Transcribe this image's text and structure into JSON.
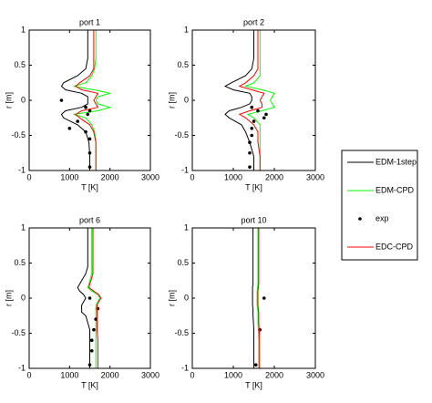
{
  "chart_data": [
    {
      "type": "line",
      "title": "port 1",
      "xlabel": "T [K]",
      "ylabel": "r [m]",
      "xlim": [
        0,
        3000
      ],
      "ylim": [
        -1,
        1
      ],
      "xticks": [
        0,
        1000,
        2000,
        3000
      ],
      "yticks": [
        -1,
        -0.5,
        0,
        0.5,
        1
      ],
      "y": [
        1,
        0.8,
        0.6,
        0.45,
        0.35,
        0.25,
        0.2,
        0.15,
        0.1,
        0.05,
        0,
        -0.05,
        -0.1,
        -0.15,
        -0.2,
        -0.25,
        -0.35,
        -0.45,
        -0.6,
        -0.8,
        -1
      ],
      "series": [
        {
          "name": "EDM-1step",
          "color": "#000000",
          "values": [
            1450,
            1450,
            1450,
            1400,
            1200,
            850,
            800,
            900,
            1300,
            1450,
            1450,
            1450,
            1300,
            900,
            800,
            850,
            1200,
            1400,
            1480,
            1500,
            1500
          ]
        },
        {
          "name": "EDM-CPD",
          "color": "#00ff00",
          "values": [
            1650,
            1650,
            1650,
            1620,
            1550,
            1400,
            1100,
            1600,
            2000,
            1700,
            1650,
            1700,
            2000,
            1700,
            1100,
            1400,
            1550,
            1620,
            1650,
            1650,
            1650
          ]
        },
        {
          "name": "exp",
          "color": "#000000",
          "style": "points",
          "y": [
            0,
            -0.1,
            -0.15,
            -0.2,
            -0.3,
            -0.4,
            -0.45,
            -0.55,
            -0.75,
            -0.95
          ],
          "values": [
            800,
            1400,
            1500,
            1450,
            1200,
            1000,
            1400,
            1500,
            1500,
            1500
          ]
        },
        {
          "name": "EDC-CPD",
          "color": "#ff0000",
          "values": [
            1600,
            1600,
            1600,
            1600,
            1500,
            1250,
            1150,
            1300,
            1700,
            1650,
            1600,
            1650,
            1700,
            1300,
            1150,
            1250,
            1500,
            1600,
            1650,
            1650,
            1650
          ]
        }
      ]
    },
    {
      "type": "line",
      "title": "port 2",
      "xlabel": "T [K]",
      "ylabel": "r [m]",
      "xlim": [
        0,
        3000
      ],
      "ylim": [
        -1,
        1
      ],
      "xticks": [
        0,
        1000,
        2000,
        3000
      ],
      "yticks": [
        -1,
        -0.5,
        0,
        0.5,
        1
      ],
      "y": [
        1,
        0.8,
        0.6,
        0.45,
        0.35,
        0.25,
        0.2,
        0.15,
        0.1,
        0.05,
        0,
        -0.05,
        -0.1,
        -0.15,
        -0.2,
        -0.25,
        -0.35,
        -0.45,
        -0.6,
        -0.8,
        -1
      ],
      "series": [
        {
          "color": "#000000",
          "values": [
            1500,
            1500,
            1500,
            1450,
            1300,
            950,
            800,
            1000,
            1400,
            1450,
            1450,
            1400,
            1200,
            900,
            800,
            900,
            1200,
            1300,
            1400,
            1500,
            1500
          ]
        },
        {
          "color": "#00ff00",
          "values": [
            1650,
            1650,
            1650,
            1650,
            1650,
            1500,
            1300,
            1700,
            2000,
            1950,
            1900,
            1950,
            2000,
            1700,
            1350,
            1500,
            1650,
            1650,
            1650,
            1650,
            1650
          ]
        },
        {
          "color": "#000000",
          "style": "points",
          "y": [
            -0.1,
            -0.15,
            -0.2,
            -0.25,
            -0.3,
            -0.4,
            -0.5,
            -0.6,
            -0.75,
            -0.95
          ],
          "values": [
            1450,
            1600,
            1800,
            1750,
            1500,
            1450,
            1450,
            1400,
            1400,
            1400
          ]
        },
        {
          "color": "#ff0000",
          "values": [
            1600,
            1600,
            1600,
            1600,
            1500,
            1300,
            1150,
            1450,
            1750,
            1700,
            1650,
            1700,
            1700,
            1400,
            1150,
            1300,
            1500,
            1600,
            1600,
            1650,
            1650
          ]
        }
      ]
    },
    {
      "type": "line",
      "title": "port 6",
      "xlabel": "T [K]",
      "ylabel": "r [m]",
      "xlim": [
        0,
        3000
      ],
      "ylim": [
        -1,
        1
      ],
      "xticks": [
        0,
        1000,
        2000,
        3000
      ],
      "yticks": [
        -1,
        -0.5,
        0,
        0.5,
        1
      ],
      "y": [
        1,
        0.8,
        0.6,
        0.45,
        0.35,
        0.25,
        0.2,
        0.15,
        0.1,
        0.05,
        0,
        -0.05,
        -0.1,
        -0.15,
        -0.2,
        -0.25,
        -0.35,
        -0.45,
        -0.6,
        -0.8,
        -1
      ],
      "series": [
        {
          "color": "#000000",
          "values": [
            1450,
            1450,
            1450,
            1450,
            1400,
            1300,
            1250,
            1200,
            1250,
            1350,
            1400,
            1350,
            1300,
            1300,
            1300,
            1400,
            1450,
            1500,
            1500,
            1500,
            1500
          ]
        },
        {
          "color": "#00ff00",
          "values": [
            1550,
            1550,
            1550,
            1550,
            1550,
            1500,
            1480,
            1450,
            1550,
            1700,
            1750,
            1700,
            1650,
            1650,
            1650,
            1650,
            1650,
            1650,
            1650,
            1650,
            1650
          ]
        },
        {
          "color": "#000000",
          "style": "points",
          "y": [
            0,
            -0.15,
            -0.3,
            -0.45,
            -0.6,
            -0.75,
            -0.95
          ],
          "values": [
            1500,
            1700,
            1650,
            1600,
            1550,
            1550,
            1500
          ]
        },
        {
          "color": "#ff0000",
          "values": [
            1580,
            1580,
            1580,
            1580,
            1580,
            1530,
            1500,
            1480,
            1600,
            1720,
            1780,
            1720,
            1680,
            1680,
            1680,
            1680,
            1680,
            1680,
            1700,
            1700,
            1700
          ]
        }
      ]
    },
    {
      "type": "line",
      "title": "port 10",
      "xlabel": "T [K]",
      "ylabel": "r [m]",
      "xlim": [
        0,
        3000
      ],
      "ylim": [
        -1,
        1
      ],
      "xticks": [
        0,
        1000,
        2000,
        3000
      ],
      "yticks": [
        -1,
        -0.5,
        0,
        0.5,
        1
      ],
      "y": [
        1,
        0.8,
        0.6,
        0.45,
        0.35,
        0.25,
        0.2,
        0.15,
        0.1,
        0.05,
        0,
        -0.05,
        -0.1,
        -0.15,
        -0.2,
        -0.25,
        -0.35,
        -0.45,
        -0.6,
        -0.8,
        -1
      ],
      "series": [
        {
          "color": "#000000",
          "values": [
            1480,
            1480,
            1480,
            1480,
            1480,
            1480,
            1480,
            1470,
            1470,
            1470,
            1470,
            1470,
            1470,
            1480,
            1480,
            1480,
            1490,
            1500,
            1500,
            1500,
            1500
          ]
        },
        {
          "color": "#00ff00",
          "values": [
            1600,
            1600,
            1600,
            1600,
            1600,
            1600,
            1600,
            1590,
            1580,
            1580,
            1580,
            1580,
            1580,
            1590,
            1600,
            1600,
            1600,
            1610,
            1620,
            1620,
            1620
          ]
        },
        {
          "color": "#000000",
          "style": "points",
          "y": [
            0,
            -0.45,
            -0.95
          ],
          "values": [
            1750,
            1650,
            1550
          ]
        },
        {
          "color": "#ff0000",
          "values": [
            1620,
            1620,
            1620,
            1620,
            1620,
            1620,
            1620,
            1610,
            1600,
            1600,
            1600,
            1600,
            1600,
            1610,
            1620,
            1620,
            1620,
            1630,
            1640,
            1640,
            1640
          ]
        }
      ]
    }
  ]
}
